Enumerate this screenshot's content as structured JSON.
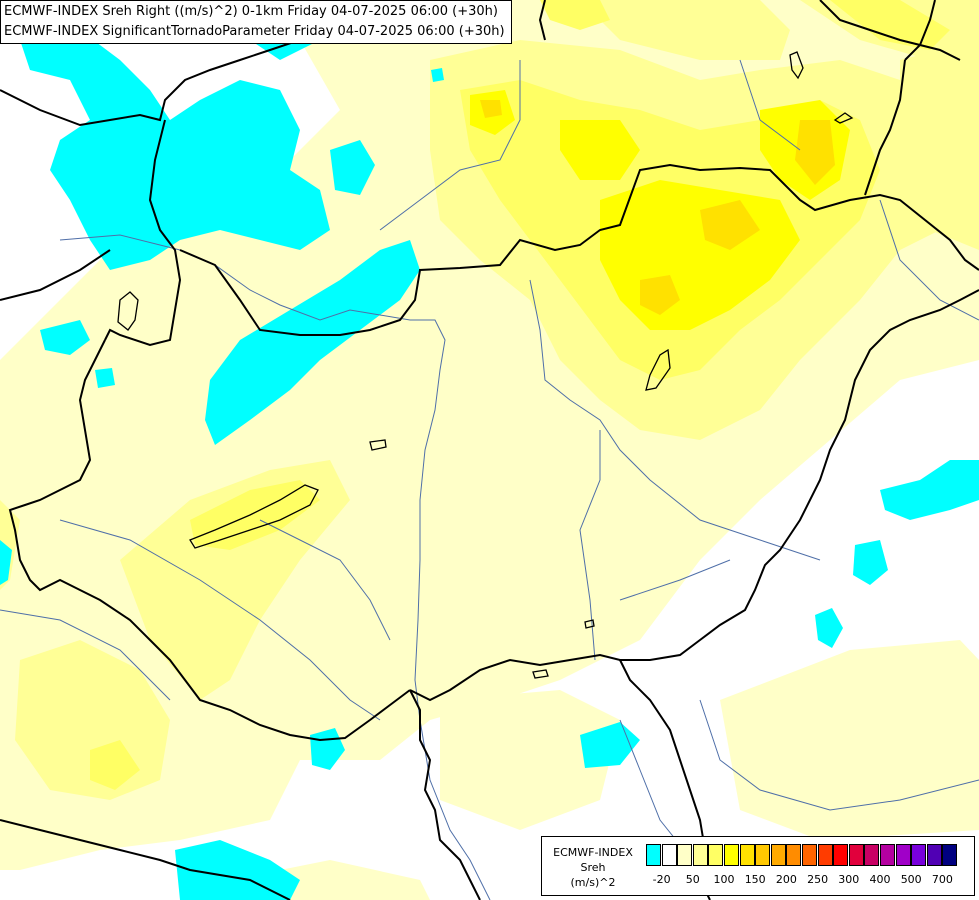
{
  "title": {
    "line1": "ECMWF-INDEX Sreh Right ((m/s)^2) 0-1km Friday 04-07-2025 06:00 (+30h)",
    "line2": "ECMWF-INDEX SignificantTornadoParameter Friday 04-07-2025 06:00 (+30h)"
  },
  "legend": {
    "source": "ECMWF-INDEX",
    "variable": "Sreh",
    "unit": "(m/s)^2",
    "colors": [
      "#00ffff",
      "#ffffff",
      "#ffffc8",
      "#ffff96",
      "#ffff64",
      "#ffff00",
      "#ffe100",
      "#ffc800",
      "#ffaa00",
      "#ff8c00",
      "#ff6400",
      "#ff3c00",
      "#ff0000",
      "#e1003c",
      "#c80064",
      "#b400a0",
      "#a000c8",
      "#7800dc",
      "#5000b4",
      "#000080"
    ],
    "ticks": [
      {
        "label": "-20",
        "at": 1
      },
      {
        "label": "50",
        "at": 3
      },
      {
        "label": "100",
        "at": 5
      },
      {
        "label": "150",
        "at": 7
      },
      {
        "label": "200",
        "at": 9
      },
      {
        "label": "250",
        "at": 11
      },
      {
        "label": "300",
        "at": 13
      },
      {
        "label": "400",
        "at": 15
      },
      {
        "label": "500",
        "at": 17
      },
      {
        "label": "700",
        "at": 19
      }
    ]
  },
  "map_colors": {
    "background": "#ffffff",
    "pale_yellow": "#ffffc8",
    "light_yellow": "#ffff96",
    "yellow": "#ffff64",
    "strong_yellow": "#ffff00",
    "gold": "#ffe100",
    "cyan": "#00ffff",
    "border": "#000000",
    "river": "#4f6fa8"
  }
}
